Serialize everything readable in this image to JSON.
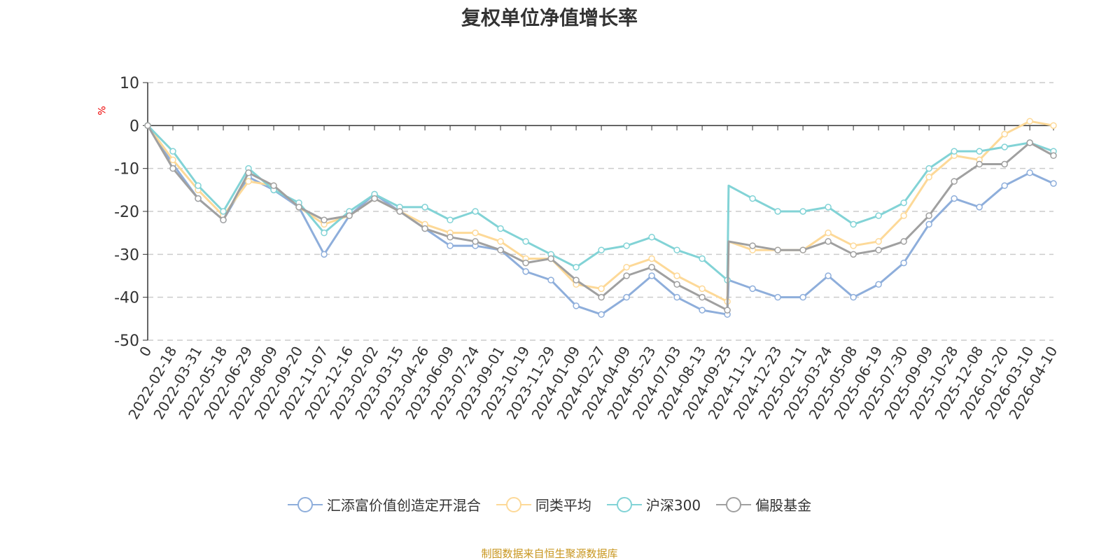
{
  "chart_data": {
    "type": "line",
    "title": "复权单位净值增长率",
    "ylabel": "%",
    "ylim": [
      -50,
      10
    ],
    "yticks": [
      10,
      0,
      -10,
      -20,
      -30,
      -40,
      -50
    ],
    "grid": true,
    "legend_position": "bottom",
    "xtick_labels": [
      "0",
      "2022-02-18",
      "2022-03-31",
      "2022-05-18",
      "2022-06-29",
      "2022-08-09",
      "2022-09-20",
      "2022-11-07",
      "2022-12-16",
      "2023-02-02",
      "2023-03-15",
      "2023-04-26",
      "2023-06-09",
      "2023-07-24",
      "2023-09-01",
      "2023-10-19",
      "2023-11-29",
      "2024-01-09",
      "2024-02-27",
      "2024-04-09",
      "2024-05-23",
      "2024-07-03",
      "2024-08-13",
      "2024-09-25",
      "2024-11-12",
      "2024-12-23",
      "2025-02-11",
      "2025-03-24",
      "2025-05-08",
      "2025-06-19",
      "2025-07-30",
      "2025-09-09",
      "2025-10-28",
      "2025-12-08",
      "2026-01-20",
      "2026-03-10",
      "2026-04-10"
    ],
    "x": [
      0,
      1,
      2,
      3,
      4,
      5,
      6,
      7,
      8,
      9,
      10,
      11,
      12,
      13,
      14,
      15,
      16,
      17,
      18,
      19,
      20,
      21,
      22,
      23,
      23.05,
      24,
      25,
      26,
      27,
      28,
      29,
      30,
      31,
      32,
      33,
      34,
      35,
      35.94
    ],
    "series": [
      {
        "name": "汇添富价值创造定开混合",
        "color": "#8eaedb",
        "values": [
          0,
          -9,
          -17,
          -22,
          -12,
          -15,
          -19,
          -30,
          -21,
          -16,
          -20,
          -24,
          -28,
          -28,
          -29,
          -34,
          -36,
          -42,
          -44,
          -40,
          -35,
          -40,
          -43,
          -44,
          -36,
          -38,
          -40,
          -40,
          -35,
          -40,
          -37,
          -32,
          -23,
          -17,
          -19,
          -14,
          -11,
          -13.5
        ]
      },
      {
        "name": "同类平均",
        "color": "#fdd998",
        "values": [
          0,
          -8,
          -15,
          -21,
          -13,
          -14,
          -19,
          -23,
          -21,
          -17,
          -20,
          -23,
          -25,
          -25,
          -27,
          -31,
          -31,
          -37,
          -38,
          -33,
          -31,
          -35,
          -38,
          -41,
          -27,
          -29,
          -29,
          -29,
          -25,
          -28,
          -27,
          -21,
          -12,
          -7,
          -8,
          -2,
          1,
          0
        ]
      },
      {
        "name": "沪深300",
        "color": "#82d3d6",
        "values": [
          0,
          -6,
          -14,
          -20,
          -10,
          -15,
          -18,
          -25,
          -20,
          -16,
          -19,
          -19,
          -22,
          -20,
          -24,
          -27,
          -30,
          -33,
          -29,
          -28,
          -26,
          -29,
          -31,
          -36,
          -14,
          -17,
          -20,
          -20,
          -19,
          -23,
          -21,
          -18,
          -10,
          -6,
          -6,
          -5,
          -4,
          -6
        ]
      },
      {
        "name": "偏股基金",
        "color": "#a0a0a0",
        "values": [
          0,
          -10,
          -17,
          -22,
          -11,
          -14,
          -19,
          -22,
          -21,
          -17,
          -20,
          -24,
          -26,
          -27,
          -29,
          -32,
          -31,
          -36,
          -40,
          -35,
          -33,
          -37,
          -40,
          -43,
          -27,
          -28,
          -29,
          -29,
          -27,
          -30,
          -29,
          -27,
          -21,
          -13,
          -9,
          -9,
          -4,
          -7
        ]
      }
    ]
  },
  "source": "制图数据来自恒生聚源数据库"
}
